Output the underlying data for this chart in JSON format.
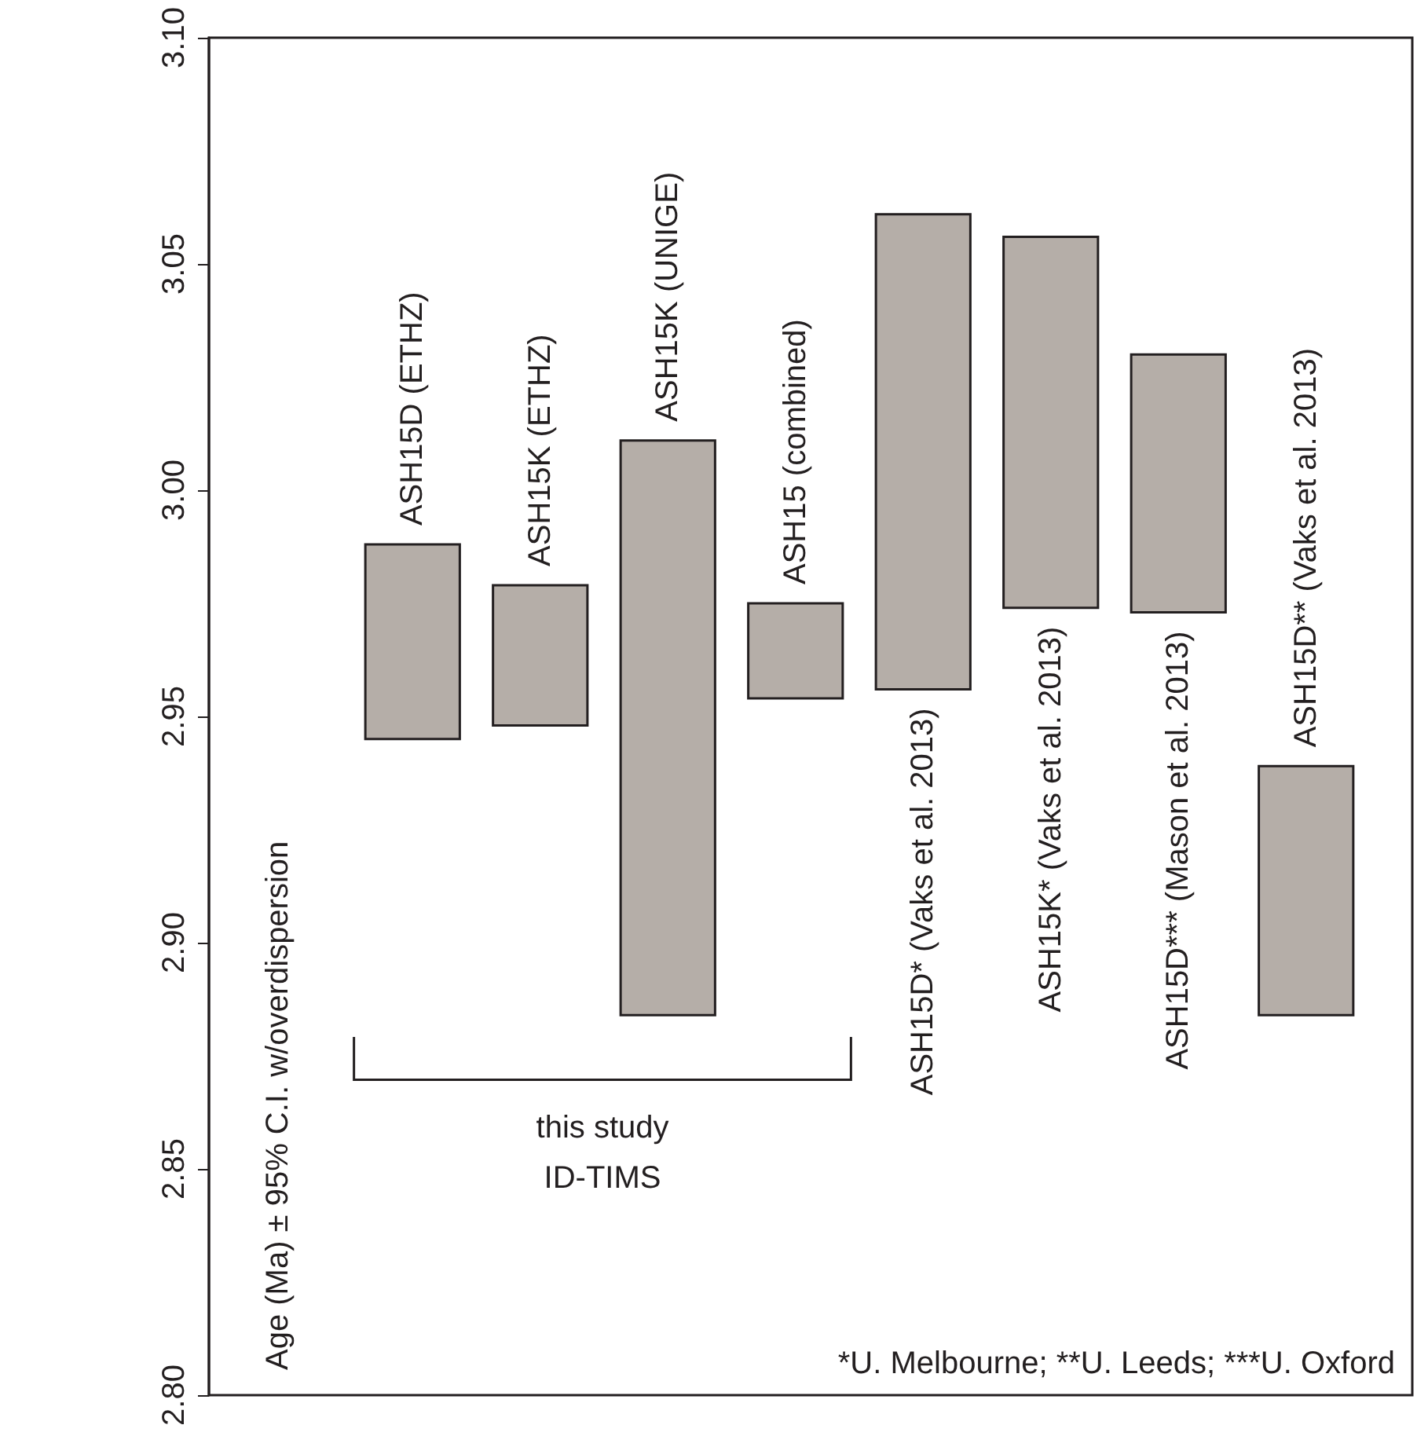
{
  "chart_data": {
    "type": "bar",
    "ylabel": "Age (Ma) ± 95% C.I. w/overdispersion",
    "categories": [
      "ASH15D (ETHZ)",
      "ASH15K (ETHZ)",
      "ASH15K (UNIGE)",
      "ASH15 (combined)",
      "ASH15D* (Vaks et al. 2013)",
      "ASH15K* (Vaks et al. 2013)",
      "ASH15D*** (Mason et al. 2013)",
      "ASH15D** (Vaks et al. 2013)"
    ],
    "base": [
      2.945,
      2.948,
      2.884,
      2.954,
      2.956,
      2.974,
      2.973,
      2.884
    ],
    "values": [
      0.043,
      0.031,
      0.127,
      0.021,
      0.105,
      0.082,
      0.057,
      0.055
    ],
    "color": "#b5aea8",
    "ylim": [
      2.8,
      3.1
    ],
    "yticks": [
      {
        "value": 2.8,
        "label": "2.80"
      },
      2.85,
      {
        "value": 2.9,
        "label": "2.90"
      },
      2.95,
      {
        "value": 3.0,
        "label": "3.00"
      },
      3.05,
      {
        "value": 3.1,
        "label": "3.10"
      }
    ],
    "annotations": [
      "this study\nID-TIMS",
      "*U. Melbourne; **U. Leeds; ***U. Oxford"
    ],
    "grid": false
  }
}
